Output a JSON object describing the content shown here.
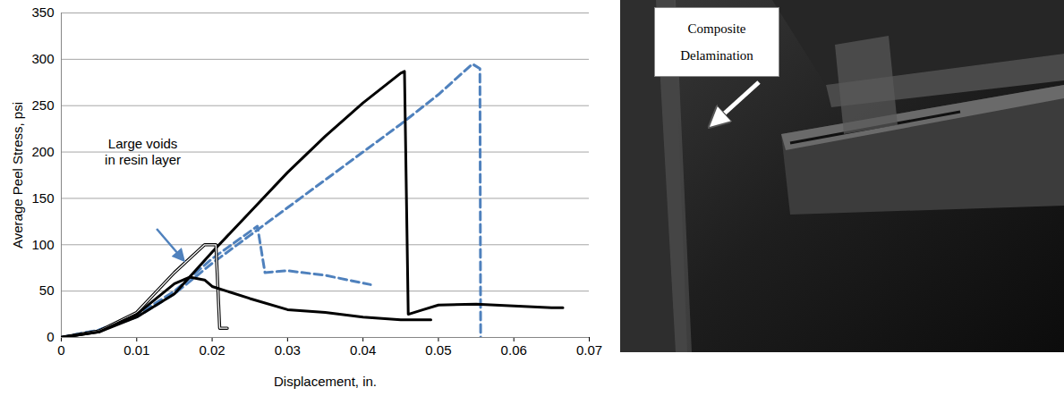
{
  "chart_data": {
    "type": "line",
    "xlabel": "Displacement, in.",
    "ylabel": "Average Peel Stress, psi",
    "xlim": [
      0,
      0.07
    ],
    "xticks": [
      0,
      0.01,
      0.02,
      0.03,
      0.04,
      0.05,
      0.06,
      0.07
    ],
    "ylim": [
      0,
      350
    ],
    "yticks": [
      0,
      50,
      100,
      150,
      200,
      250,
      300,
      350
    ],
    "grid": true,
    "series": [
      {
        "color": "#4f81bd",
        "line_style": "dashed",
        "x": [
          0,
          0.005,
          0.01,
          0.015,
          0.02,
          0.025,
          0.03,
          0.035,
          0.04,
          0.045,
          0.05,
          0.0545,
          0.0555,
          0.0556
        ],
        "values": [
          0,
          8,
          22,
          47,
          80,
          110,
          140,
          170,
          200,
          230,
          262,
          295,
          290,
          0
        ]
      },
      {
        "color": "#4f81bd",
        "line_style": "dashed",
        "x": [
          0,
          0.005,
          0.01,
          0.015,
          0.02,
          0.026,
          0.027,
          0.03,
          0.035,
          0.041
        ],
        "values": [
          0,
          8,
          24,
          50,
          85,
          120,
          70,
          72,
          67,
          57
        ]
      },
      {
        "color": "#000000",
        "line_style": "solid",
        "x": [
          0,
          0.005,
          0.01,
          0.015,
          0.02,
          0.025,
          0.03,
          0.035,
          0.04,
          0.045,
          0.0455,
          0.046,
          0.048,
          0.05,
          0.055,
          0.06,
          0.065,
          0.0665
        ],
        "values": [
          0,
          6,
          22,
          47,
          92,
          135,
          178,
          217,
          253,
          285,
          287,
          25,
          30,
          35,
          36,
          34,
          32,
          32
        ]
      },
      {
        "color": "#000000",
        "line_style": "double",
        "x": [
          0,
          0.005,
          0.01,
          0.015,
          0.019,
          0.0205,
          0.021,
          0.022
        ],
        "values": [
          0,
          7,
          27,
          70,
          100,
          100,
          10,
          10
        ]
      },
      {
        "color": "#000000",
        "line_style": "solid",
        "x": [
          0,
          0.005,
          0.01,
          0.015,
          0.017,
          0.019,
          0.02,
          0.025,
          0.03,
          0.035,
          0.04,
          0.045,
          0.049
        ],
        "values": [
          0,
          6,
          25,
          58,
          65,
          62,
          55,
          42,
          30,
          27,
          22,
          19,
          19
        ]
      }
    ],
    "annotations": [
      {
        "text": "Large voids\nin resin layer",
        "x": 0.0165,
        "y": 80
      }
    ]
  },
  "image": {
    "label": "Composite Delamination"
  }
}
